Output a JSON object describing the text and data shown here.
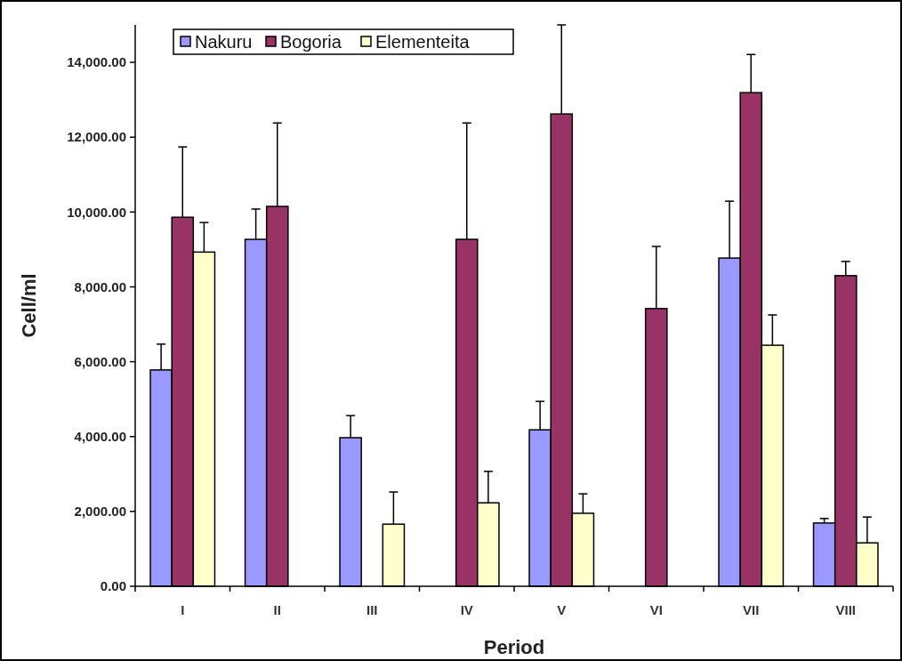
{
  "chart_data": {
    "type": "bar",
    "xlabel": "Period",
    "ylabel": "Cell/ml",
    "categories": [
      "I",
      "II",
      "III",
      "IV",
      "V",
      "VI",
      "VII",
      "VIII"
    ],
    "series": [
      {
        "name": "Nakuru",
        "color": "#9999ff",
        "values": [
          5780,
          9270,
          3970,
          null,
          4180,
          null,
          8770,
          1690
        ],
        "errors": [
          [
            5780,
            6470
          ],
          [
            9270,
            10080
          ],
          [
            3970,
            4560
          ],
          null,
          [
            4180,
            4940
          ],
          null,
          [
            8770,
            10290
          ],
          [
            1690,
            1810
          ]
        ]
      },
      {
        "name": "Bogoria",
        "color": "#993366",
        "values": [
          9860,
          10150,
          null,
          9270,
          12620,
          7420,
          13190,
          8300
        ],
        "errors": [
          [
            9860,
            11740
          ],
          [
            10150,
            12380
          ],
          null,
          [
            9270,
            12380
          ],
          [
            12620,
            15000
          ],
          [
            7420,
            9080
          ],
          [
            13190,
            14210
          ],
          [
            8300,
            8680
          ]
        ]
      },
      {
        "name": "Elementeita",
        "color": "#ffffcc",
        "values": [
          8930,
          null,
          1660,
          2230,
          1950,
          null,
          6440,
          1160
        ],
        "errors": [
          [
            8930,
            9720
          ],
          null,
          [
            1660,
            2520
          ],
          [
            2230,
            3070
          ],
          [
            1950,
            2470
          ],
          null,
          [
            6440,
            7250
          ],
          [
            1160,
            1850
          ]
        ]
      }
    ],
    "ylim": [
      0,
      15000
    ],
    "yticks": [
      {
        "value": 0,
        "label": "0.00"
      },
      {
        "value": 2000,
        "label": "2,000.00"
      },
      {
        "value": 4000,
        "label": "4,000.00"
      },
      {
        "value": 6000,
        "label": "6,000.00"
      },
      {
        "value": 8000,
        "label": "8,000.00"
      },
      {
        "value": 10000,
        "label": "10,000.00"
      },
      {
        "value": 12000,
        "label": "12,000.00"
      },
      {
        "value": 14000,
        "label": "14,000.00"
      }
    ],
    "legend": "top left",
    "grid": false
  }
}
